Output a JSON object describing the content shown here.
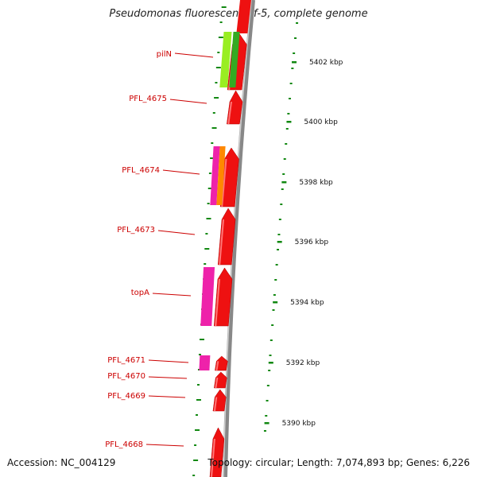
{
  "title": "Pseudomonas fluorescens Pf-5, complete genome",
  "footer": {
    "accession": "Accession: NC_004129",
    "summary": "Topology: circular; Length: 7,074,893 bp; Genes: 6,226"
  },
  "colors": {
    "backbone": "#8a8a8a",
    "cds": "#ee1111",
    "gene_label": "#cc0000",
    "tick": "#118811",
    "pink": "#ee22aa",
    "orange": "#ff8800",
    "lime": "#99ee22",
    "green": "#33aa22"
  },
  "scale": {
    "ticks": [
      {
        "label": "5402 kbp"
      },
      {
        "label": "5400 kbp"
      },
      {
        "label": "5398 kbp"
      },
      {
        "label": "5396 kbp"
      },
      {
        "label": "5394 kbp"
      },
      {
        "label": "5392 kbp"
      },
      {
        "label": "5390 kbp"
      }
    ]
  },
  "genes": [
    {
      "label": "pilN"
    },
    {
      "label": "PFL_4675"
    },
    {
      "label": "PFL_4674"
    },
    {
      "label": "PFL_4673"
    },
    {
      "label": "topA"
    },
    {
      "label": "PFL_4671"
    },
    {
      "label": "PFL_4670"
    },
    {
      "label": "PFL_4669"
    },
    {
      "label": "PFL_4668"
    }
  ]
}
